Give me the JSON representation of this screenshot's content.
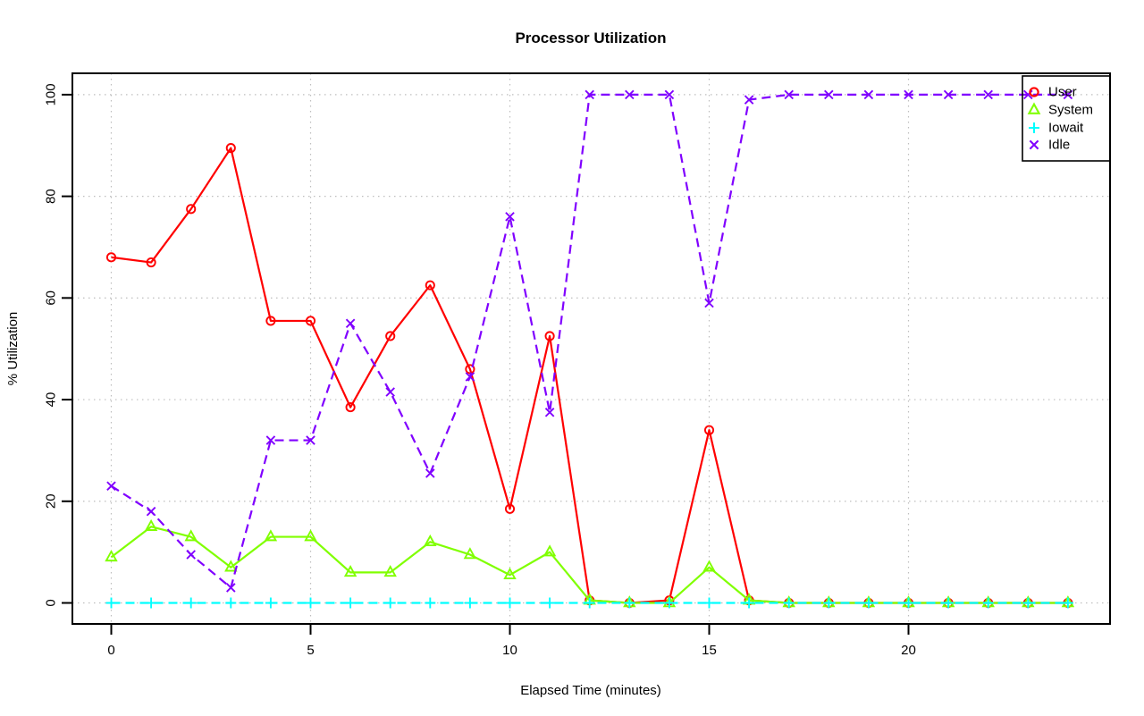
{
  "chart_data": {
    "type": "line",
    "title": "Processor Utilization",
    "xlabel": "Elapsed Time (minutes)",
    "ylabel": "% Utilization",
    "x": [
      0,
      1,
      2,
      3,
      4,
      5,
      6,
      7,
      8,
      9,
      10,
      11,
      12,
      13,
      14,
      15,
      16,
      17,
      18,
      19,
      20,
      21,
      22,
      23,
      24
    ],
    "x_ticks": [
      0,
      5,
      10,
      15,
      20
    ],
    "y_ticks": [
      0,
      20,
      40,
      60,
      80,
      100
    ],
    "xlim": [
      0,
      24
    ],
    "ylim": [
      0,
      100
    ],
    "grid": "dotted",
    "legend_position": "top-right",
    "series": [
      {
        "name": "User",
        "color": "#ff0000",
        "marker": "circle",
        "line_style": "solid",
        "values": [
          68,
          67,
          77.5,
          89.5,
          55.5,
          55.5,
          38.5,
          52.5,
          62.5,
          46,
          18.5,
          52.5,
          0.5,
          0,
          0.5,
          34,
          0.5,
          0,
          0,
          0,
          0,
          0,
          0,
          0,
          0
        ]
      },
      {
        "name": "System",
        "color": "#80ff00",
        "marker": "triangle",
        "line_style": "solid",
        "values": [
          9,
          15,
          13,
          7,
          13,
          13,
          6,
          6,
          12,
          9.5,
          5.5,
          10,
          0.5,
          0,
          0,
          7,
          0.5,
          0,
          0,
          0,
          0,
          0,
          0,
          0,
          0
        ]
      },
      {
        "name": "Iowait",
        "color": "#00ffff",
        "marker": "plus",
        "line_style": "dashed",
        "values": [
          0,
          0,
          0,
          0,
          0,
          0,
          0,
          0,
          0,
          0,
          0,
          0,
          0,
          0,
          0,
          0,
          0,
          0,
          0,
          0,
          0,
          0,
          0,
          0,
          0
        ]
      },
      {
        "name": "Idle",
        "color": "#8000ff",
        "marker": "x",
        "line_style": "dashed",
        "values": [
          23,
          18,
          9.5,
          3,
          32,
          32,
          55,
          41.5,
          25.5,
          44.5,
          76,
          37.5,
          100,
          100,
          100,
          59,
          99,
          100,
          100,
          100,
          100,
          100,
          100,
          100,
          100
        ]
      }
    ],
    "grid_color": "#bebebe",
    "axis_color": "#000000"
  }
}
